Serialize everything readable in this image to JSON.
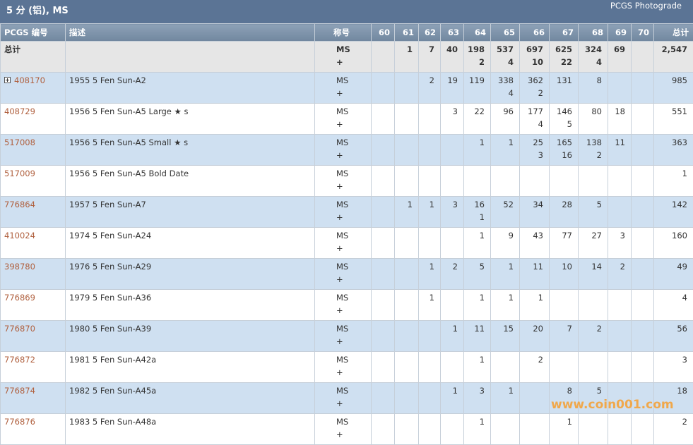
{
  "header": {
    "title": "5 分 (铝), MS",
    "subtitle": "PCGS Photograde"
  },
  "table": {
    "columns": [
      "PCGS 编号",
      "描述",
      "称号",
      "60",
      "61",
      "62",
      "63",
      "64",
      "65",
      "66",
      "67",
      "68",
      "69",
      "70",
      "总计"
    ],
    "total_row": {
      "label": "总计",
      "designation": [
        "MS",
        "+"
      ],
      "grades": [
        null,
        [
          "1"
        ],
        [
          "7"
        ],
        [
          "40"
        ],
        [
          "198",
          "2"
        ],
        [
          "537",
          "4"
        ],
        [
          "697",
          "10"
        ],
        [
          "625",
          "22"
        ],
        [
          "324",
          "4"
        ],
        [
          "69"
        ],
        null
      ],
      "total": "2,547"
    },
    "rows": [
      {
        "id": "408170",
        "description": "1955 5 Fen Sun-A2",
        "designation": [
          "MS",
          "+"
        ],
        "grades": [
          null,
          null,
          [
            "2"
          ],
          [
            "19"
          ],
          [
            "119"
          ],
          [
            "338",
            "4"
          ],
          [
            "362",
            "2"
          ],
          [
            "131"
          ],
          [
            "8"
          ],
          null,
          null
        ],
        "total": "985"
      },
      {
        "id": "408729",
        "description": "1956 5 Fen Sun-A5 Large ★ s",
        "designation": [
          "MS",
          "+"
        ],
        "grades": [
          null,
          null,
          null,
          [
            "3"
          ],
          [
            "22"
          ],
          [
            "96"
          ],
          [
            "177",
            "4"
          ],
          [
            "146",
            "5"
          ],
          [
            "80"
          ],
          [
            "18"
          ],
          null
        ],
        "total": "551"
      },
      {
        "id": "517008",
        "description": "1956 5 Fen Sun-A5 Small ★ s",
        "designation": [
          "MS",
          "+"
        ],
        "grades": [
          null,
          null,
          null,
          null,
          [
            "1"
          ],
          [
            "1"
          ],
          [
            "25",
            "3"
          ],
          [
            "165",
            "16"
          ],
          [
            "138",
            "2"
          ],
          [
            "11"
          ],
          null
        ],
        "total": "363"
      },
      {
        "id": "517009",
        "description": "1956 5 Fen Sun-A5 Bold Date",
        "designation": [
          "MS",
          "+"
        ],
        "grades": [
          null,
          null,
          null,
          null,
          null,
          null,
          null,
          null,
          null,
          null,
          null
        ],
        "total": "1"
      },
      {
        "id": "776864",
        "description": "1957 5 Fen Sun-A7",
        "designation": [
          "MS",
          "+"
        ],
        "grades": [
          null,
          [
            "1"
          ],
          [
            "1"
          ],
          [
            "3"
          ],
          [
            "16",
            "1"
          ],
          [
            "52"
          ],
          [
            "34"
          ],
          [
            "28"
          ],
          [
            "5"
          ],
          null,
          null
        ],
        "total": "142"
      },
      {
        "id": "410024",
        "description": "1974 5 Fen Sun-A24",
        "designation": [
          "MS",
          "+"
        ],
        "grades": [
          null,
          null,
          null,
          null,
          [
            "1"
          ],
          [
            "9"
          ],
          [
            "43"
          ],
          [
            "77"
          ],
          [
            "27"
          ],
          [
            "3"
          ],
          null
        ],
        "total": "160"
      },
      {
        "id": "398780",
        "description": "1976 5 Fen Sun-A29",
        "designation": [
          "MS",
          "+"
        ],
        "grades": [
          null,
          null,
          [
            "1"
          ],
          [
            "2"
          ],
          [
            "5"
          ],
          [
            "1"
          ],
          [
            "11"
          ],
          [
            "10"
          ],
          [
            "14"
          ],
          [
            "2"
          ],
          null
        ],
        "total": "49"
      },
      {
        "id": "776869",
        "description": "1979 5 Fen Sun-A36",
        "designation": [
          "MS",
          "+"
        ],
        "grades": [
          null,
          null,
          [
            "1"
          ],
          null,
          [
            "1"
          ],
          [
            "1"
          ],
          [
            "1"
          ],
          null,
          null,
          null,
          null
        ],
        "total": "4"
      },
      {
        "id": "776870",
        "description": "1980 5 Fen Sun-A39",
        "designation": [
          "MS",
          "+"
        ],
        "grades": [
          null,
          null,
          null,
          [
            "1"
          ],
          [
            "11"
          ],
          [
            "15"
          ],
          [
            "20"
          ],
          [
            "7"
          ],
          [
            "2"
          ],
          null,
          null
        ],
        "total": "56"
      },
      {
        "id": "776872",
        "description": "1981 5 Fen Sun-A42a",
        "designation": [
          "MS",
          "+"
        ],
        "grades": [
          null,
          null,
          null,
          null,
          [
            "1"
          ],
          null,
          [
            "2"
          ],
          null,
          null,
          null,
          null
        ],
        "total": "3"
      },
      {
        "id": "776874",
        "description": "1982 5 Fen Sun-A45a",
        "designation": [
          "MS",
          "+"
        ],
        "grades": [
          null,
          null,
          null,
          [
            "1"
          ],
          [
            "3"
          ],
          [
            "1"
          ],
          null,
          [
            "8"
          ],
          [
            "5"
          ],
          null,
          null
        ],
        "total": "18"
      },
      {
        "id": "776876",
        "description": "1983 5 Fen Sun-A48a",
        "designation": [
          "MS",
          "+"
        ],
        "grades": [
          null,
          null,
          null,
          null,
          [
            "1"
          ],
          null,
          null,
          [
            "1"
          ],
          null,
          null,
          null
        ],
        "total": "2"
      }
    ]
  },
  "watermark": "www.coin001.com"
}
